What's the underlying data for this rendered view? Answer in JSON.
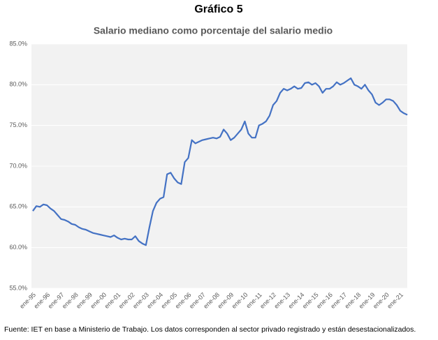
{
  "chart_data": {
    "type": "line",
    "title": "Gráfico 5",
    "subtitle": "Salario mediano como porcentaje del salario medio",
    "source": "Fuente: IET en base a Ministerio de Trabajo. Los datos corresponden al sector privado registrado y están desestacionalizados.",
    "color": "#4472c4",
    "categories": [
      "ene-95",
      null,
      null,
      null,
      "ene-96",
      null,
      null,
      null,
      "ene-97",
      null,
      null,
      null,
      "ene-98",
      null,
      null,
      null,
      "ene-99",
      null,
      null,
      null,
      "ene-00",
      null,
      null,
      null,
      "ene-01",
      null,
      null,
      null,
      "ene-02",
      null,
      null,
      null,
      "ene-03",
      null,
      null,
      null,
      "ene-04",
      null,
      null,
      null,
      "ene-05",
      null,
      null,
      null,
      "ene-06",
      null,
      null,
      null,
      "ene-07",
      null,
      null,
      null,
      "ene-08",
      null,
      null,
      null,
      "ene-09",
      null,
      null,
      null,
      "ene-10",
      null,
      null,
      null,
      "ene-11",
      null,
      null,
      null,
      "ene-12",
      null,
      null,
      null,
      "ene-13",
      null,
      null,
      null,
      "ene-14",
      null,
      null,
      null,
      "ene-15",
      null,
      null,
      null,
      "ene-16",
      null,
      null,
      null,
      "ene-17",
      null,
      null,
      null,
      "ene-18",
      null,
      null,
      null,
      "ene-19",
      null,
      null,
      null,
      "ene-20",
      null,
      null,
      null,
      "ene-21",
      null,
      null
    ],
    "values": [
      64.5,
      65.1,
      65.0,
      65.3,
      65.2,
      64.8,
      64.5,
      64.0,
      63.5,
      63.4,
      63.2,
      62.9,
      62.8,
      62.5,
      62.3,
      62.2,
      62.0,
      61.8,
      61.7,
      61.6,
      61.5,
      61.4,
      61.3,
      61.5,
      61.2,
      61.0,
      61.1,
      61.0,
      61.0,
      61.4,
      60.8,
      60.5,
      60.3,
      62.5,
      64.5,
      65.5,
      66.0,
      66.2,
      69.0,
      69.2,
      68.5,
      68.0,
      67.8,
      70.5,
      71.0,
      73.2,
      72.8,
      73.0,
      73.2,
      73.3,
      73.4,
      73.5,
      73.4,
      73.6,
      74.5,
      74.0,
      73.2,
      73.5,
      74.0,
      74.5,
      75.5,
      74.0,
      73.5,
      73.5,
      75.0,
      75.2,
      75.5,
      76.2,
      77.5,
      78.0,
      79.0,
      79.5,
      79.3,
      79.5,
      79.8,
      79.5,
      79.6,
      80.2,
      80.3,
      80.0,
      80.2,
      79.8,
      79.0,
      79.5,
      79.5,
      79.8,
      80.3,
      80.0,
      80.2,
      80.5,
      80.8,
      80.0,
      79.8,
      79.5,
      80.0,
      79.3,
      78.8,
      77.8,
      77.5,
      77.8,
      78.2,
      78.2,
      78.0,
      77.5,
      76.8,
      76.5,
      76.3
    ],
    "ylim": [
      55,
      85
    ],
    "yticks": [
      {
        "value": 55,
        "label": "55.0%"
      },
      {
        "value": 60,
        "label": "60.0%"
      },
      {
        "value": 65,
        "label": "65.0%"
      },
      {
        "value": 70,
        "label": "70.0%"
      },
      {
        "value": 75,
        "label": "75.0%"
      },
      {
        "value": 80,
        "label": "80.0%"
      },
      {
        "value": 85,
        "label": "85.0%"
      }
    ],
    "grid": true
  }
}
